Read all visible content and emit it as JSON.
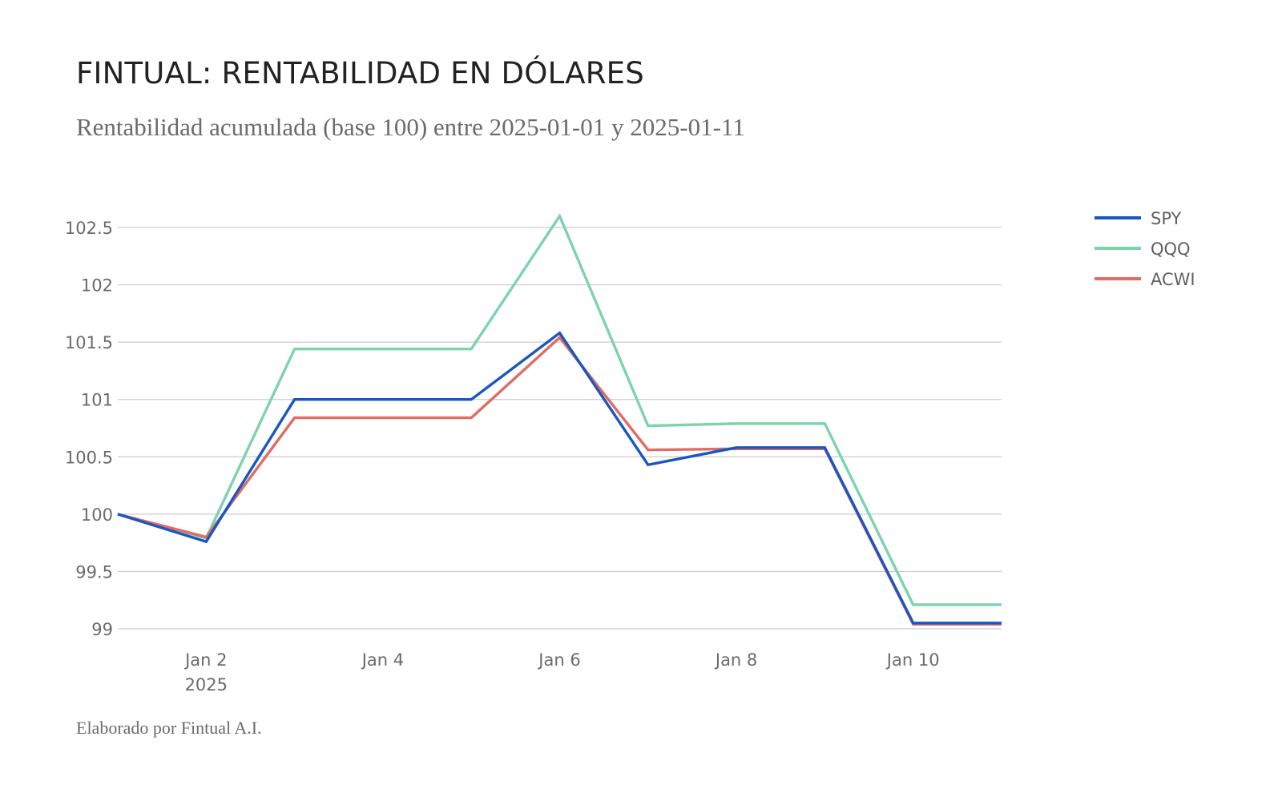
{
  "header": {
    "title": "FINTUAL: RENTABILIDAD EN DÓLARES",
    "subtitle": "Rentabilidad acumulada (base 100) entre 2025-01-01 y 2025-01-11"
  },
  "footer": {
    "credit": "Elaborado por Fintual A.I."
  },
  "chart_data": {
    "type": "line",
    "title": "FINTUAL: RENTABILIDAD EN DÓLARES",
    "subtitle": "Rentabilidad acumulada (base 100) entre 2025-01-01 y 2025-01-11",
    "xlabel": "",
    "ylabel": "",
    "x": [
      "2025-01-01",
      "2025-01-02",
      "2025-01-03",
      "2025-01-04",
      "2025-01-05",
      "2025-01-06",
      "2025-01-07",
      "2025-01-08",
      "2025-01-09",
      "2025-01-10",
      "2025-01-11"
    ],
    "xlim": [
      1,
      11
    ],
    "ylim": [
      99,
      102.6
    ],
    "y_ticks": [
      99,
      99.5,
      100,
      100.5,
      101,
      101.5,
      102,
      102.5
    ],
    "y_tick_labels": [
      "99",
      "99.5",
      "100",
      "100.5",
      "101",
      "101.5",
      "102",
      "102.5"
    ],
    "x_ticks": [
      {
        "day": 2,
        "label": "Jan 2",
        "sublabel": "2025"
      },
      {
        "day": 4,
        "label": "Jan 4"
      },
      {
        "day": 6,
        "label": "Jan 6"
      },
      {
        "day": 8,
        "label": "Jan 8"
      },
      {
        "day": 10,
        "label": "Jan 10"
      }
    ],
    "grid": true,
    "legend_position": "top-right",
    "series": [
      {
        "name": "SPY",
        "color": "#1a56c2",
        "values": [
          100,
          99.76,
          101.0,
          101.0,
          101.0,
          101.58,
          100.43,
          100.58,
          100.58,
          99.05,
          99.05
        ]
      },
      {
        "name": "QQQ",
        "color": "#7dd3ad",
        "values": [
          100,
          99.79,
          101.44,
          101.44,
          101.44,
          102.6,
          100.77,
          100.79,
          100.79,
          99.21,
          99.21
        ]
      },
      {
        "name": "ACWI",
        "color": "#e06c62",
        "values": [
          100,
          99.8,
          100.84,
          100.84,
          100.84,
          101.54,
          100.56,
          100.57,
          100.57,
          99.04,
          99.04
        ]
      }
    ]
  }
}
